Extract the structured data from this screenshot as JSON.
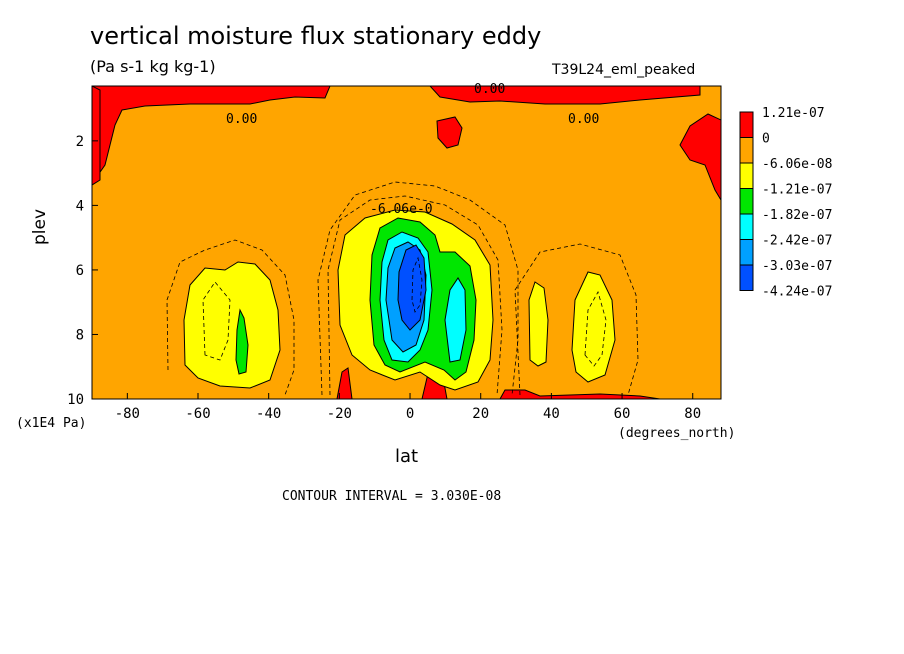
{
  "chart_data": {
    "type": "contour",
    "title": "vertical moisture flux stationary eddy",
    "subtitle": "(Pa s-1 kg kg-1)",
    "run_label": "T39L24_eml_peaked",
    "xlabel": "lat",
    "ylabel": "plev",
    "x_units": "(degrees_north)",
    "y_units": "(x1E4 Pa)",
    "xlim": [
      -90,
      88
    ],
    "ylim": [
      10,
      0.3
    ],
    "x_ticks": [
      "-80",
      "-60",
      "-40",
      "-20",
      "0",
      "20",
      "40",
      "60",
      "80"
    ],
    "y_ticks": [
      "2",
      "4",
      "6",
      "8",
      "10"
    ],
    "footer": "CONTOUR INTERVAL = 3.030E-08",
    "contour_labels": [
      "0.00",
      "0.00",
      "0.00",
      "-6.06e-0"
    ],
    "legend": [
      {
        "label": "1.21e-07",
        "color": "#ff0000"
      },
      {
        "label": "0",
        "color": "#ffa500"
      },
      {
        "label": "-6.06e-08",
        "color": "#ffff00"
      },
      {
        "label": "-1.21e-07",
        "color": "#00e600"
      },
      {
        "label": "-1.82e-07",
        "color": "#00ffff"
      },
      {
        "label": "-2.42e-07",
        "color": "#00a0ff"
      },
      {
        "label": "-3.03e-07",
        "color": "#0050ff"
      },
      {
        "label": "-4.24e-07",
        "color": null
      }
    ]
  }
}
